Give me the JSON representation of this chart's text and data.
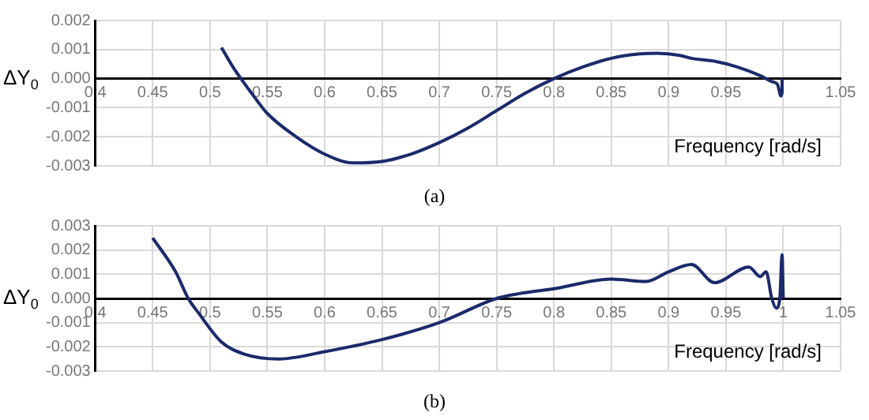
{
  "chart_data": [
    {
      "type": "line",
      "xlabel": "Frequency [rad/s]",
      "ylabel": "ΔY$_{0}$",
      "annotations": [
        "(a)"
      ],
      "grid": true,
      "marker": "none",
      "line_style": "solid",
      "legend": false,
      "xlim": [
        0.4,
        1.05
      ],
      "xticks": [
        0.4,
        0.45,
        0.5,
        0.55,
        0.6,
        0.65,
        0.7,
        0.75,
        0.8,
        0.85,
        0.9,
        0.95,
        {
          "value": 1,
          "label": null
        },
        1.05
      ],
      "ylim": [
        -0.003,
        0.002
      ],
      "yticks": [
        {
          "value": -0.003,
          "label": "-0.003"
        },
        {
          "value": -0.002,
          "label": "-0.002"
        },
        {
          "value": -0.001,
          "label": "-0.001"
        },
        {
          "value": 0,
          "label": "0.000"
        },
        {
          "value": 0.001,
          "label": "0.001"
        },
        {
          "value": 0.002,
          "label": "0.002"
        }
      ],
      "series": [
        {
          "color": "#1b2a6b",
          "x": [
            0.51,
            0.52,
            0.527,
            0.54,
            0.55,
            0.575,
            0.6,
            0.625,
            0.65,
            0.675,
            0.7,
            0.725,
            0.75,
            0.775,
            0.8,
            0.825,
            0.85,
            0.875,
            0.89,
            0.91,
            0.92,
            0.94,
            0.96,
            0.98,
            0.99,
            0.995,
            0.998,
            0.999,
            0.999
          ],
          "values": [
            0.00107,
            0.0004,
            0,
            -0.0007,
            -0.0012,
            -0.002,
            -0.0026,
            -0.0029,
            -0.00285,
            -0.0026,
            -0.0022,
            -0.0017,
            -0.0011,
            -0.0005,
            0,
            0.0004,
            0.0007,
            0.00085,
            0.00087,
            0.0008,
            0.0007,
            0.0006,
            0.0004,
            0.0001,
            -0.0001,
            -0.0002,
            -0.0006,
            -0.0005,
            0
          ]
        }
      ]
    },
    {
      "type": "line",
      "xlabel": "Frequency [rad/s]",
      "ylabel": "ΔY$_{0}$",
      "annotations": [
        "(b)"
      ],
      "grid": true,
      "marker": "none",
      "line_style": "solid",
      "legend": false,
      "xlim": [
        0.4,
        1.05
      ],
      "xticks": [
        0.4,
        0.45,
        0.5,
        0.55,
        0.6,
        0.65,
        0.7,
        0.75,
        0.8,
        0.85,
        0.9,
        0.95,
        1,
        1.05
      ],
      "ylim": [
        -0.003,
        0.003
      ],
      "yticks": [
        {
          "value": -0.003,
          "label": "-0.003"
        },
        {
          "value": -0.002,
          "label": "-0.002"
        },
        {
          "value": -0.001,
          "label": "-0.001"
        },
        {
          "value": 0,
          "label": "0.000"
        },
        {
          "value": 0.001,
          "label": "0.001"
        },
        {
          "value": 0.002,
          "label": "0.002"
        },
        {
          "value": 0.003,
          "label": "0.003"
        }
      ],
      "series": [
        {
          "color": "#1b2a6b",
          "x": [
            0.45,
            0.47,
            0.481,
            0.49,
            0.51,
            0.53,
            0.56,
            0.6,
            0.65,
            0.7,
            0.75,
            0.77,
            0.8,
            0.85,
            0.88,
            0.9,
            0.92,
            0.94,
            0.97,
            0.98,
            0.985,
            0.99,
            0.994,
            0.997,
            0.999,
            1.0
          ],
          "values": [
            0.0025,
            0.0011,
            0,
            -0.0006,
            -0.0018,
            -0.0023,
            -0.0025,
            -0.0022,
            -0.0017,
            -0.001,
            0,
            0.0002,
            0.0004,
            0.0008,
            0.0007,
            0.0011,
            0.0014,
            0.00065,
            0.0013,
            0.0009,
            0.0011,
            0,
            -0.0004,
            0,
            0.0018,
            0
          ]
        }
      ]
    }
  ]
}
